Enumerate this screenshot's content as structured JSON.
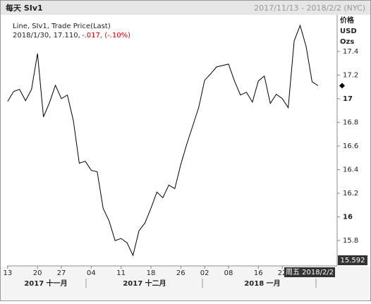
{
  "header": {
    "title": "每天 SIv1",
    "range": "2017/11/13 - 2018/2/2 (NYC)"
  },
  "chart_data": {
    "type": "line",
    "legend": {
      "line1": "Line, SIv1, Trade Price(Last)",
      "line2": "2018/1/30, 17.110,",
      "line2_change": "-.017, (-.10%)"
    },
    "y_axis_label": [
      "价格",
      "USD",
      "Ozs"
    ],
    "cursor_value": "15.592",
    "cursor_date": "周五 2018/2/2",
    "x": [
      0,
      1,
      2,
      3,
      4,
      5,
      6,
      7,
      8,
      9,
      10,
      11,
      12,
      13,
      14,
      15,
      16,
      17,
      18,
      19,
      20,
      21,
      22,
      23,
      24,
      25,
      26,
      27,
      28,
      29,
      30,
      31,
      32,
      33,
      34,
      35,
      36,
      37,
      38,
      39,
      40,
      41,
      42,
      43,
      44,
      45,
      46,
      47,
      48,
      49,
      50,
      51,
      52
    ],
    "series": [
      {
        "name": "SIv1",
        "color": "#000000",
        "values": [
          16.977,
          17.061,
          17.079,
          16.983,
          17.079,
          17.382,
          16.846,
          16.965,
          17.114,
          17.001,
          17.031,
          16.817,
          16.454,
          16.471,
          16.394,
          16.382,
          16.072,
          15.965,
          15.799,
          15.817,
          15.781,
          15.674,
          15.882,
          15.948,
          16.072,
          16.21,
          16.162,
          16.269,
          16.239,
          16.442,
          16.614,
          16.769,
          16.924,
          17.156,
          17.21,
          17.269,
          17.281,
          17.293,
          17.15,
          17.031,
          17.055,
          16.971,
          17.15,
          17.192,
          16.96,
          17.037,
          17.001,
          16.924,
          17.489,
          17.62,
          17.442,
          17.144,
          17.11
        ]
      }
    ],
    "xlim": [
      -0.1,
      55.2
    ],
    "xticks": [
      {
        "value": 0,
        "label": "13"
      },
      {
        "value": 5,
        "label": "20"
      },
      {
        "value": 9,
        "label": "27"
      },
      {
        "value": 14,
        "label": "04"
      },
      {
        "value": 19,
        "label": "11"
      },
      {
        "value": 24,
        "label": "18"
      },
      {
        "value": 29,
        "label": "26"
      },
      {
        "value": 33,
        "label": "02"
      },
      {
        "value": 37,
        "label": "08"
      },
      {
        "value": 42,
        "label": "16"
      },
      {
        "value": 46,
        "label": "22"
      }
    ],
    "x_groups": [
      "2017 十一月",
      "2017 十二月",
      "2018 一月"
    ],
    "ylim": [
      15.585,
      17.71
    ],
    "yticks": [
      17.4,
      17.2,
      17,
      16.8,
      16.6,
      16.4,
      16.2,
      16,
      15.8
    ],
    "grid": false
  }
}
